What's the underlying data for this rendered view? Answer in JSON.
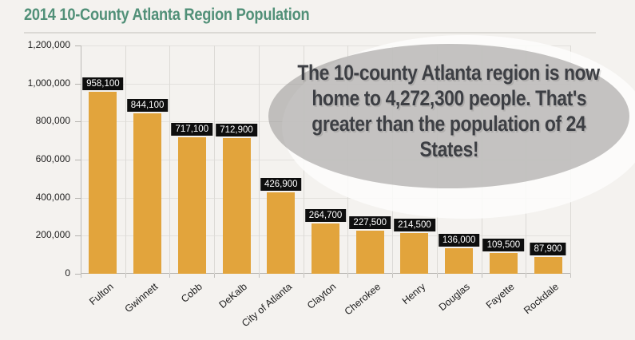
{
  "page": {
    "background": "#f4f2ef"
  },
  "header": {
    "title": "2014 10-County Atlanta Region Population",
    "title_color": "#519078"
  },
  "callout": {
    "lines": [
      "The 10-county Atlanta region is now",
      "home to 4,272,300 people. That's",
      "greater than the population of 24",
      "States!"
    ],
    "total_population": "4,272,300",
    "text_color": "#3d3f44",
    "fill_color": "rgba(150,148,145,0.55)"
  },
  "chart_data": {
    "type": "bar",
    "title": "2014 10-County Atlanta Region Population",
    "categories": [
      "Fulton",
      "Gwinnett",
      "Cobb",
      "DeKalb",
      "City of Atlanta",
      "Clayton",
      "Cherokee",
      "Henry",
      "Douglas",
      "Fayette",
      "Rockdale"
    ],
    "values": [
      958100,
      844100,
      717100,
      712900,
      426900,
      264700,
      227500,
      214500,
      136000,
      109500,
      87900
    ],
    "data_labels": [
      "958,100",
      "844,100",
      "717,100",
      "712,900",
      "426,900",
      "264,700",
      "227,500",
      "214,500",
      "136,000",
      "109,500",
      "87,900"
    ],
    "xlabel": "",
    "ylabel": "",
    "ylim": [
      0,
      1200000
    ],
    "ytick_step": 200000,
    "ytick_labels": [
      "0",
      "200,000",
      "400,000",
      "600,000",
      "800,000",
      "1,000,000",
      "1,200,000"
    ],
    "grid": true,
    "legend": "none",
    "bar_color": "#e2a43c",
    "value_label_bg": "#0e0e0e",
    "value_label_color": "#ffffff"
  }
}
